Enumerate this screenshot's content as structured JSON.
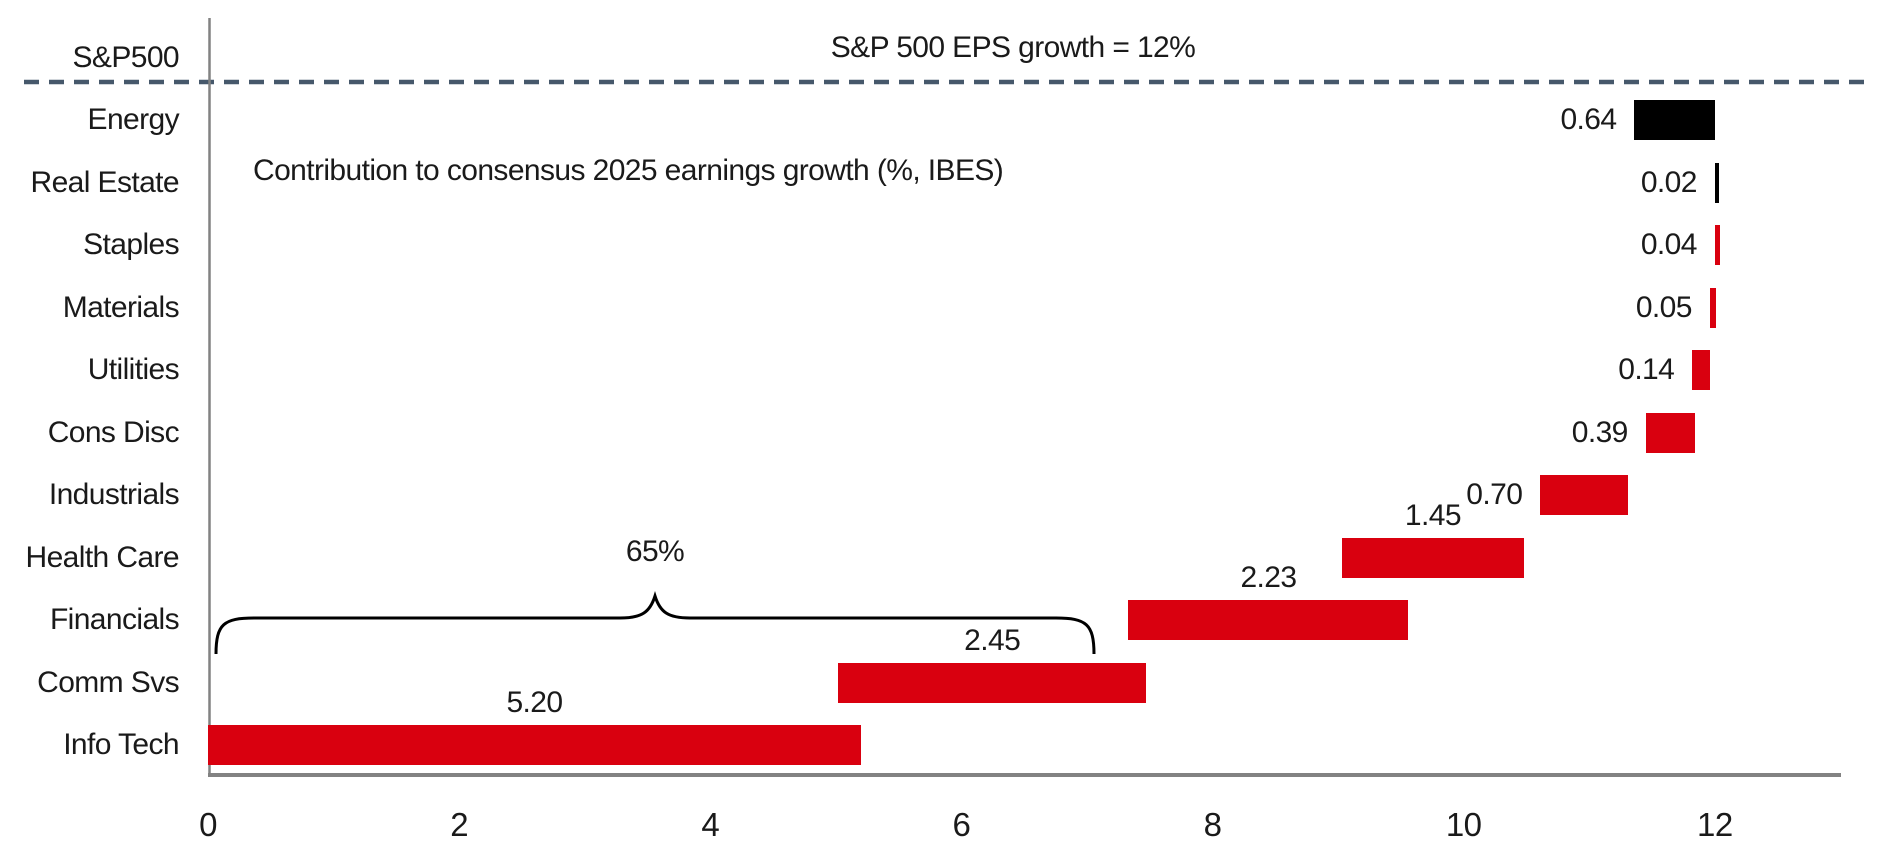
{
  "chart_data": {
    "type": "bar",
    "subtype": "horizontal-waterfall",
    "title": "Contribution to consensus 2025 earnings growth (%, IBES)",
    "axis_row_label": "S&P500",
    "reference_line": {
      "label": "S&P 500 EPS growth = 12%",
      "value": 12,
      "style": "dashed"
    },
    "annotation": {
      "label": "65%",
      "from": 0.05,
      "to": 7.05
    },
    "x_axis": {
      "tick_labels": [
        "0",
        "2",
        "4",
        "6",
        "8",
        "10",
        "12"
      ],
      "tick_values": [
        0,
        2,
        4,
        6,
        8,
        10,
        12
      ],
      "min": 0,
      "max": 13.2,
      "gridlines": false
    },
    "legend": "none",
    "colors": {
      "bar_red": "#D9000F",
      "bar_black": "#000000",
      "reference_dash": "#46586B",
      "axis_gray": "#828282",
      "text": "#1a1a1a"
    },
    "categories": [
      "Energy",
      "Real Estate",
      "Staples",
      "Materials",
      "Utilities",
      "Cons Disc",
      "Industrials",
      "Health Care",
      "Financials",
      "Comm Svs",
      "Info Tech"
    ],
    "sectors": [
      {
        "label": "Energy",
        "value": 0.64,
        "value_label": "0.64",
        "start": 11.36,
        "end": 12.0,
        "color": "black",
        "value_label_side": "left"
      },
      {
        "label": "Real Estate",
        "value": 0.02,
        "value_label": "0.02",
        "start": 12.0,
        "end": 12.03,
        "color": "black",
        "value_label_side": "left"
      },
      {
        "label": "Staples",
        "value": 0.04,
        "value_label": "0.04",
        "start": 12.0,
        "end": 12.04,
        "color": "red",
        "value_label_side": "left"
      },
      {
        "label": "Materials",
        "value": 0.05,
        "value_label": "0.05",
        "start": 11.96,
        "end": 12.01,
        "color": "red",
        "value_label_side": "left"
      },
      {
        "label": "Utilities",
        "value": 0.14,
        "value_label": "0.14",
        "start": 11.82,
        "end": 11.96,
        "color": "red",
        "value_label_side": "left"
      },
      {
        "label": "Cons Disc",
        "value": 0.39,
        "value_label": "0.39",
        "start": 11.45,
        "end": 11.84,
        "color": "red",
        "value_label_side": "left"
      },
      {
        "label": "Industrials",
        "value": 0.7,
        "value_label": "0.70",
        "start": 10.61,
        "end": 11.31,
        "color": "red",
        "value_label_side": "left"
      },
      {
        "label": "Health Care",
        "value": 1.45,
        "value_label": "1.45",
        "start": 9.03,
        "end": 10.48,
        "color": "red",
        "value_label_side": "above"
      },
      {
        "label": "Financials",
        "value": 2.23,
        "value_label": "2.23",
        "start": 7.33,
        "end": 9.56,
        "color": "red",
        "value_label_side": "above"
      },
      {
        "label": "Comm Svs",
        "value": 2.45,
        "value_label": "2.45",
        "start": 5.02,
        "end": 7.47,
        "color": "red",
        "value_label_side": "above"
      },
      {
        "label": "Info Tech",
        "value": 5.2,
        "value_label": "5.20",
        "start": 0.0,
        "end": 5.2,
        "color": "red",
        "value_label_side": "above"
      }
    ]
  }
}
